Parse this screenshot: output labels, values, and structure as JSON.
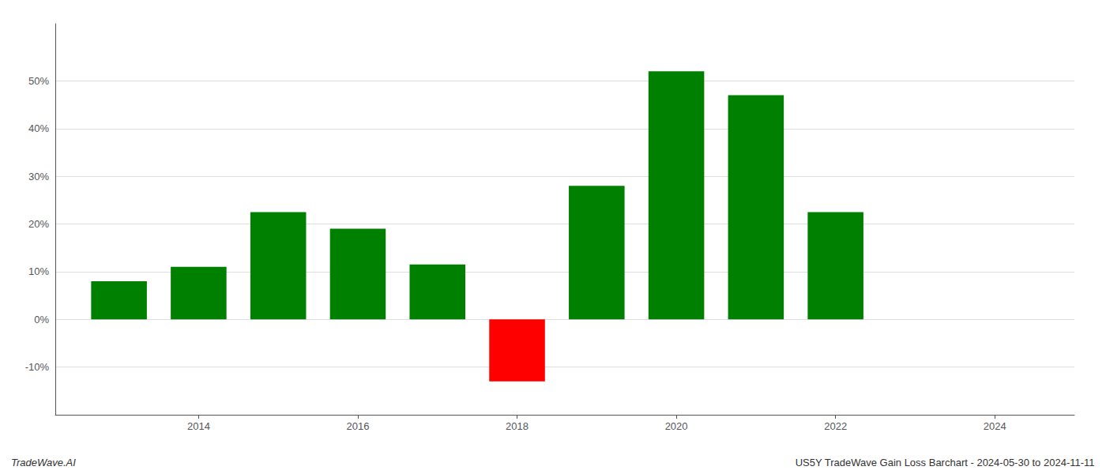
{
  "chart_data": {
    "type": "bar",
    "x": [
      2013,
      2014,
      2015,
      2016,
      2017,
      2018,
      2019,
      2020,
      2021,
      2022
    ],
    "values": [
      0.08,
      0.11,
      0.225,
      0.19,
      0.115,
      -0.13,
      0.28,
      0.52,
      0.47,
      0.225
    ],
    "colors": [
      "#008000",
      "#008000",
      "#008000",
      "#008000",
      "#008000",
      "#ff0000",
      "#008000",
      "#008000",
      "#008000",
      "#008000"
    ],
    "xlim": [
      2012.2,
      2025.0
    ],
    "xticks": [
      2014,
      2016,
      2018,
      2020,
      2022,
      2024
    ],
    "ylim": [
      -0.2,
      0.62
    ],
    "yticks": [
      {
        "value": -0.1,
        "label": "-10%"
      },
      {
        "value": 0.0,
        "label": "0%"
      },
      {
        "value": 0.1,
        "label": "10%"
      },
      {
        "value": 0.2,
        "label": "20%"
      },
      {
        "value": 0.3,
        "label": "30%"
      },
      {
        "value": 0.4,
        "label": "40%"
      },
      {
        "value": 0.5,
        "label": "50%"
      }
    ],
    "grid": true,
    "annotations": [
      "TradeWave.AI",
      "US5Y TradeWave Gain Loss Barchart - 2024-05-30 to 2024-11-11"
    ]
  }
}
